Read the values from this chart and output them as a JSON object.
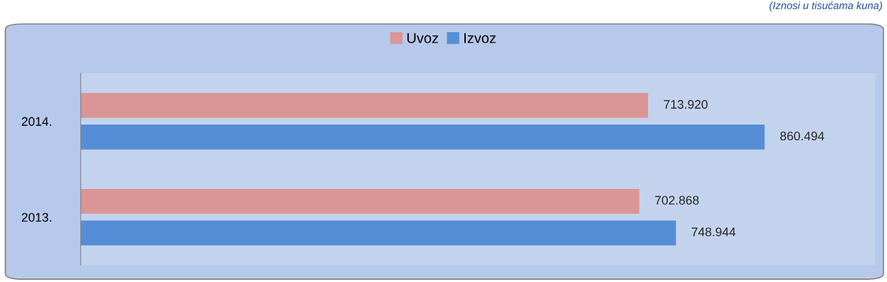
{
  "chart_data": {
    "type": "bar",
    "orientation": "horizontal",
    "categories": [
      "2014.",
      "2013."
    ],
    "series": [
      {
        "name": "Uvoz",
        "color": "#d99694",
        "values": [
          713920,
          702868
        ],
        "value_labels": [
          "713.920",
          "702.868"
        ]
      },
      {
        "name": "Izvoz",
        "color": "#558ed5",
        "values": [
          860494,
          748944
        ],
        "value_labels": [
          "860.494",
          "748.944"
        ]
      }
    ],
    "xlim": [
      0,
      1000000
    ],
    "tick_labels": "y",
    "grid": false,
    "legend": "top",
    "annotations": [
      "(Iznosi u tisućama kuna)"
    ]
  }
}
